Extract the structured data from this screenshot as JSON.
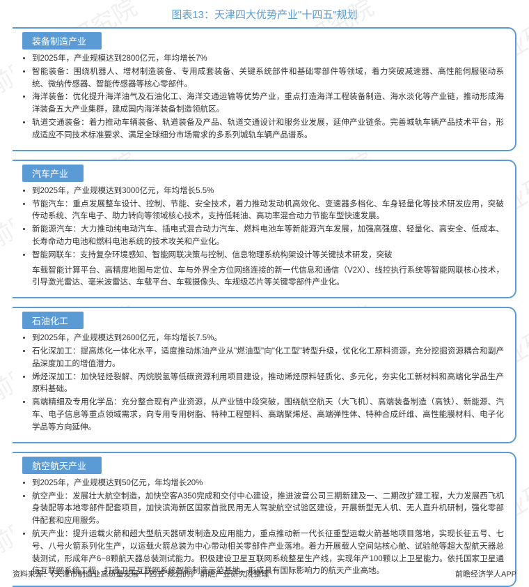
{
  "title_prefix": "图表13：",
  "title_text": "天津四大优势产业\"十四五\"规划",
  "colors": {
    "accent": "#5b9bd5",
    "text": "#333333",
    "bg": "#ffffff"
  },
  "watermark_text": "前瞻产业研究院",
  "sections": [
    {
      "header": "装备制造产业",
      "items": [
        "到2025年，产业规模达到2800亿元，年均增长7%",
        "智能装备：围绕机器人、增材制造装备、专用成套装备、关键系统部件和基础零部件等领域，着力突破减速器、高性能伺服驱动系统、微纳传感器、智能传感器等核心零部件。",
        "海洋装备：优化提升海洋油气及石油化工、海洋交通运输等优势产业，重点打造海洋工程装备制造、海水淡化等产业链，推动形成海洋装备五大产业集群，建成国内海洋装备制造领航区。",
        "轨道交通装备：着力推动车辆装备、轨道装备及产品、轨道交通设计和服务业发展，延伸产业链条。完善城轨车辆产品技术平台，形成适应不同技术标准要求、满足全球细分市场需求的多系列城轨车辆产品谱系。"
      ]
    },
    {
      "header": "汽车产业",
      "items": [
        "到2025年，产业规模达到3000亿元，年均增长5.5%",
        "节能汽车：重点发展整车设计、控制、节能、安全技术，着力推动发动机高效化、变速器多档化、车身轻量化等技术研发应用，突破传动系统、汽车电子、助力转向等领域核心技术，支持低耗油、高功率混合动力节能车型快速发展。",
        "新能源汽车：大力推动纯电动汽车、插电式混合动力汽车、燃料电池车等新能源汽车发展，加强高强度、轻量化、高安全、低成本、长寿命动力电池和燃料电池系统的技术攻关和产业化。",
        "智能网联车：支持复杂环境感知、智能网联决策与控制、信息物理系统构架设计等关键技术研发，突破",
        "车载智能计算平台、高精度地图与定位、车与外界全方位网络连接的新一代信息和通信（V2X）、线控执行系统等智能网联核心技术，引导激光雷达、毫米波雷达、车载平台、车载摄像头、车规级芯片等关键零部件产业化。"
      ]
    },
    {
      "header": "石油化工",
      "items": [
        "到2025年，产业规模达到2600亿元，年均增长7.5%。",
        "石化深加工：提高炼化一体化水平，适度推动炼油产业从\"燃油型\"向\"化工型\"转型升级，优化化工原料资源，充分挖掘资源耦合和副产品深度加工的增值潜力。",
        "烯烃深加工：加快轻烃裂解、丙烷脱氢等低碳资源利用项目建设，推动烯烃原料轻质化、多元化，夯实化工新材料和高端化学品生产原料基础。",
        "高端精细及专用化学品：充分整合现有产业资源，从产业链中段突破，围绕航空航天（大飞机）、高端装备制造（高铁）、新能源、汽车、电子信息等重点领域需求，向专用专用树脂、特种工程塑料、高端聚烯烃、高端弹性体、特种合成纤维、高性能膜材料、电子化学品等方向延伸。"
      ]
    },
    {
      "header": "航空航天产业",
      "items": [
        "到2025年，产业规模达到50亿元，年均增长20%",
        "航空产业：发展壮大航空制造，加快空客A350完成和交付中心建设，推进波音公司三期新建及一、二期改扩建工程，大力发展西飞机身装配等本地零部件配套项目，加快滨海新区国家首批民用无人驾驶航空试验区建设，开展新型无人机、无人直升机研制，强化零部件配套和应用服务。",
        "航天产业：提升运载火箭和超大型航天器研发制造及应用能力，重点推动新一代长征重型运载火箭基地项目落地，实现长征五号、七号、八号火箭系列化生产，以运载火箭总装为中心带动相关零部件产业落地。着力开展载人空间站核心舱、试验舱等超大型航天器总装测试，形成年产6~8颗航天器总装测试能力。积极建设卫星互联网系统整星生产线，实现年产100颗以上卫星能力。依托国家卫星通信互联网系统工程，打造卫星互联网系统智能制造示范基地，形成具有国际影响力的航天产业高地。"
      ]
    }
  ],
  "source_left": "资料来源：《天津市制造业高质量发展\"十四五\"规划的》 前瞻产业研究院整理",
  "source_right": "前瞻经济学人APP"
}
